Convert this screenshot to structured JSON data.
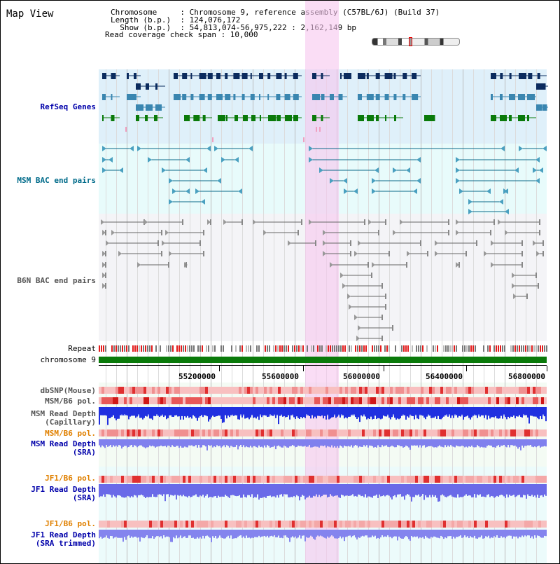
{
  "app": {
    "title": "Map View"
  },
  "info": {
    "lines": [
      "Chromosome     : Chromosome 9, reference assembly (C57BL/6J) (Build 37)",
      "Length (b.p.)  : 124,076,172",
      "  Show (b.p.)  : 54,813,074-56,975,222 : 2,162,149 bp",
      "Read coverage check span : 10,000"
    ]
  },
  "tracks": {
    "refseq": "RefSeq Genes",
    "msm_bac": "MSM BAC end pairs",
    "b6n_bac": "B6N BAC end pairs",
    "repeat": "Repeat",
    "chromosome": "chromosome 9",
    "dbsnp": "dbSNP(Mouse)",
    "msm_b6_pol_1": "MSM/B6 pol.",
    "msm_read_depth_cap": "MSM Read Depth\n(Capillary)",
    "msm_b6_pol_2": "MSM/B6 pol.",
    "msm_read_depth_sra": "MSM Read Depth\n(SRA)",
    "jf1_b6_pol_1": "JF1/B6 pol.",
    "jf1_read_depth_sra": "JF1 Read Depth\n(SRA)",
    "jf1_b6_pol_2": "JF1/B6 pol.",
    "jf1_read_depth_trim": "JF1 Read Depth\n(SRA trimmed)"
  },
  "axis": {
    "ticks": [
      "55200000",
      "55600000",
      "56000000",
      "56400000",
      "56800000"
    ]
  },
  "colors": {
    "refseq_label": "#0000aa",
    "msm_label": "#006b8a",
    "b6n_label": "#555555",
    "pol_label": "#e08000",
    "depth_label": "#0000aa",
    "highlight": "#f7c6ee"
  }
}
